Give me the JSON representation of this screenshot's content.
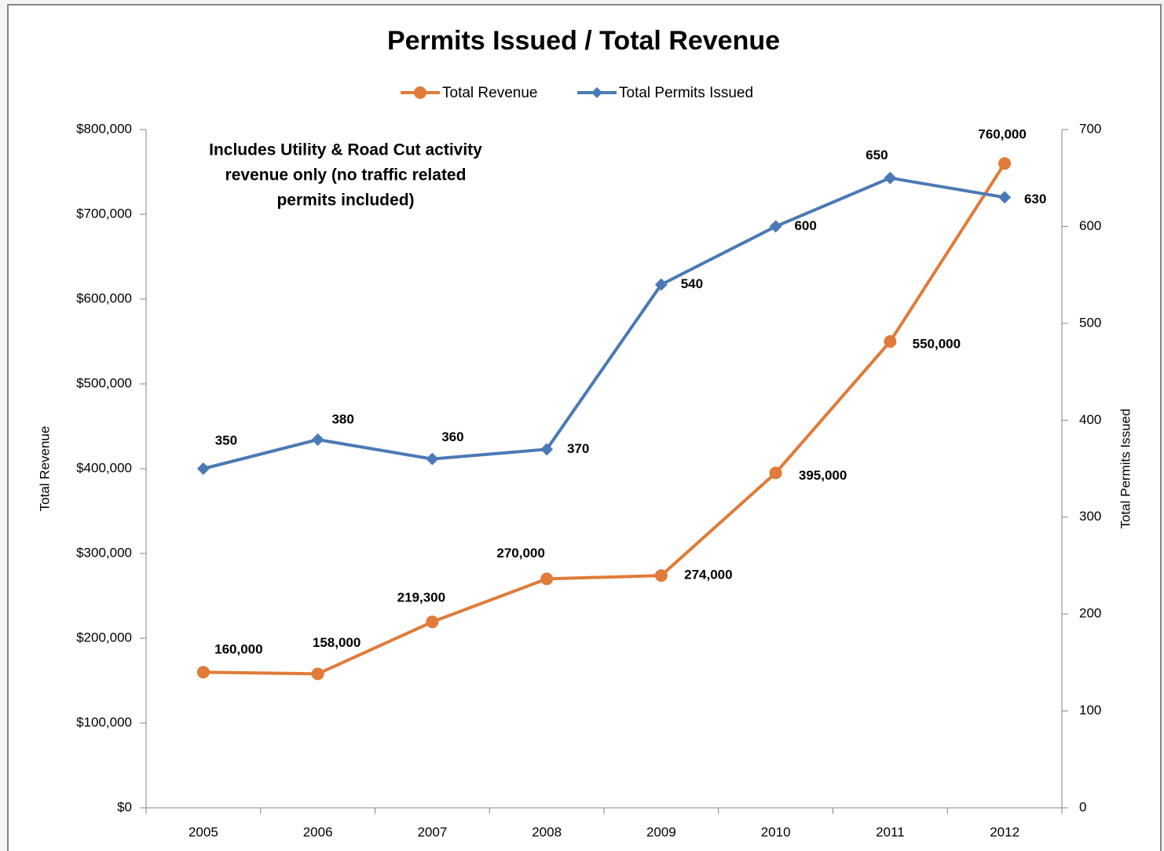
{
  "chart_data": {
    "type": "line",
    "title": "Permits Issued / Total Revenue",
    "annotation": [
      "Includes Utility & Road Cut activity",
      "revenue only (no traffic related",
      "permits included)"
    ],
    "y_label": "Total Revenue",
    "y2_label": "Total Permits Issued",
    "categories": [
      "2005",
      "2006",
      "2007",
      "2008",
      "2009",
      "2010",
      "2011",
      "2012"
    ],
    "series": [
      {
        "name": "Total Revenue",
        "color": "#e07b39",
        "marker": "circle",
        "axis": "y",
        "values": [
          160000,
          158000,
          219300,
          270000,
          274000,
          395000,
          550000,
          760000
        ],
        "value_labels": [
          "160,000",
          "158,000",
          "219,300",
          "270,000",
          "274,000",
          "395,000",
          "550,000",
          "760,000"
        ]
      },
      {
        "name": "Total Permits Issued",
        "color": "#4a7ab5",
        "marker": "diamond",
        "axis": "y2",
        "values": [
          350,
          380,
          360,
          370,
          540,
          600,
          650,
          630
        ]
      }
    ],
    "ylim": [
      0,
      800000
    ],
    "yticks": [
      {
        "value": 0,
        "label": "$0"
      },
      {
        "value": 100000,
        "label": "$100,000"
      },
      {
        "value": 200000,
        "label": "$200,000"
      },
      {
        "value": 300000,
        "label": "$300,000"
      },
      {
        "value": 400000,
        "label": "$400,000"
      },
      {
        "value": 500000,
        "label": "$500,000"
      },
      {
        "value": 600000,
        "label": "$600,000"
      },
      {
        "value": 700000,
        "label": "$700,000"
      },
      {
        "value": 800000,
        "label": "$800,000"
      }
    ],
    "y2lim": [
      0,
      700
    ],
    "y2ticks": [
      0,
      100,
      200,
      300,
      400,
      500,
      600,
      700
    ],
    "legend": "top",
    "grid": false
  }
}
